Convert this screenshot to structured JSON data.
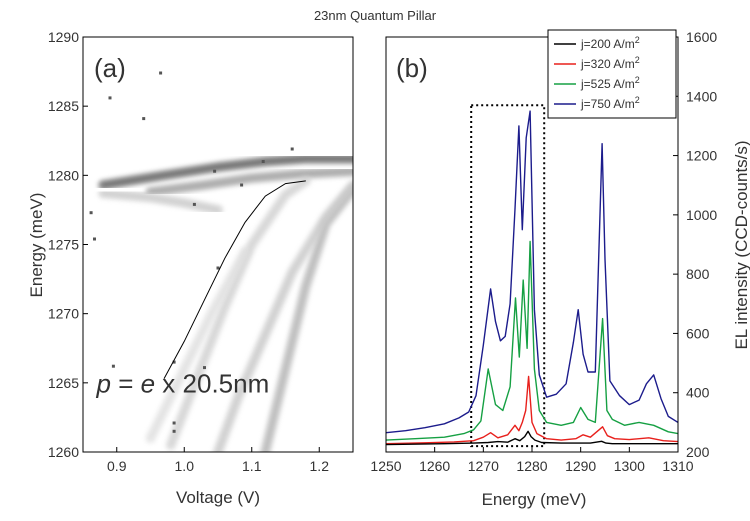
{
  "figure_title": "23nm Quantum Pillar",
  "chart_data": [
    {
      "type": "heatmap",
      "panel_label": "(a)",
      "xlabel": "Voltage (V)",
      "ylabel": "Energy (meV)",
      "xlim": [
        0.85,
        1.25
      ],
      "ylim": [
        1260,
        1290
      ],
      "x_ticks": [
        {
          "value": 0.9,
          "label": "0.9"
        },
        {
          "value": 1.0,
          "label": "1.0"
        },
        {
          "value": 1.1,
          "label": "1.1"
        },
        {
          "value": 1.2,
          "label": "1.2"
        }
      ],
      "y_ticks": [
        {
          "value": 1260,
          "label": "1260"
        },
        {
          "value": 1265,
          "label": "1265"
        },
        {
          "value": 1270,
          "label": "1270"
        },
        {
          "value": 1275,
          "label": "1275"
        },
        {
          "value": 1280,
          "label": "1280"
        },
        {
          "value": 1285,
          "label": "1285"
        },
        {
          "value": 1290,
          "label": "1290"
        }
      ],
      "colormap": "grayscale",
      "dark_bands": [
        {
          "points": [
            [
              0.88,
              1279.3
            ],
            [
              0.97,
              1280.0
            ],
            [
              1.05,
              1280.6
            ],
            [
              1.12,
              1281.0
            ],
            [
              1.18,
              1281.2
            ],
            [
              1.25,
              1281.2
            ]
          ],
          "intensity": 0.75
        },
        {
          "points": [
            [
              0.95,
              1278.8
            ],
            [
              1.03,
              1279.3
            ],
            [
              1.1,
              1279.8
            ],
            [
              1.17,
              1280.1
            ],
            [
              1.25,
              1280.3
            ]
          ],
          "intensity": 0.45
        },
        {
          "points": [
            [
              0.88,
              1278.7
            ],
            [
              0.95,
              1278.4
            ],
            [
              1.0,
              1278.0
            ],
            [
              1.05,
              1277.5
            ]
          ],
          "intensity": 0.25
        },
        {
          "points": [
            [
              1.12,
              1260.0
            ],
            [
              1.15,
              1266.0
            ],
            [
              1.18,
              1272.0
            ],
            [
              1.21,
              1276.5
            ],
            [
              1.25,
              1279.0
            ]
          ],
          "intensity": 0.35
        },
        {
          "points": [
            [
              1.05,
              1260.0
            ],
            [
              1.08,
              1264.0
            ],
            [
              1.12,
              1268.5
            ],
            [
              1.16,
              1273.0
            ],
            [
              1.21,
              1277.0
            ],
            [
              1.25,
              1279.3
            ]
          ],
          "intensity": 0.25
        },
        {
          "points": [
            [
              0.98,
              1260.5
            ],
            [
              1.02,
              1265.5
            ],
            [
              1.06,
              1270.5
            ],
            [
              1.1,
              1275.0
            ],
            [
              1.15,
              1278.6
            ],
            [
              1.18,
              1279.6
            ]
          ],
          "intensity": 0.22
        },
        {
          "points": [
            [
              0.95,
              1261.0
            ],
            [
              1.0,
              1266.0
            ],
            [
              1.04,
              1270.0
            ],
            [
              1.09,
              1274.5
            ]
          ],
          "intensity": 0.15
        }
      ],
      "dots": [
        {
          "x": 0.965,
          "y": 1287.4
        },
        {
          "x": 0.89,
          "y": 1285.6
        },
        {
          "x": 0.94,
          "y": 1284.1
        },
        {
          "x": 1.117,
          "y": 1281.0
        },
        {
          "x": 1.16,
          "y": 1281.9
        },
        {
          "x": 1.045,
          "y": 1280.3
        },
        {
          "x": 1.085,
          "y": 1279.3
        },
        {
          "x": 1.015,
          "y": 1277.9
        },
        {
          "x": 0.862,
          "y": 1277.3
        },
        {
          "x": 0.867,
          "y": 1275.4
        },
        {
          "x": 1.05,
          "y": 1273.3
        },
        {
          "x": 0.985,
          "y": 1266.5
        },
        {
          "x": 1.03,
          "y": 1266.1
        },
        {
          "x": 0.895,
          "y": 1266.2
        },
        {
          "x": 0.985,
          "y": 1262.1
        },
        {
          "x": 0.985,
          "y": 1261.5
        }
      ],
      "fit_curve": [
        [
          0.97,
          1265.3
        ],
        [
          1.0,
          1268.0
        ],
        [
          1.03,
          1271.0
        ],
        [
          1.06,
          1274.0
        ],
        [
          1.09,
          1276.6
        ],
        [
          1.12,
          1278.5
        ],
        [
          1.15,
          1279.4
        ],
        [
          1.18,
          1279.6
        ]
      ],
      "annotation": {
        "prefix": "p",
        "eq": " = ",
        "var": "e",
        "suffix": " x 20.5nm",
        "x": 0.87,
        "y": 1264.3
      }
    },
    {
      "type": "line",
      "panel_label": "(b)",
      "xlabel": "Energy (meV)",
      "ylabel": "EL intensity (CCD-counts/s)",
      "xlim": [
        1250,
        1310
      ],
      "ylim": [
        200,
        1600
      ],
      "x_ticks": [
        1250,
        1260,
        1270,
        1280,
        1290,
        1300,
        1310
      ],
      "y_ticks": [
        200,
        400,
        600,
        800,
        1000,
        1200,
        1400,
        1600
      ],
      "legend_position": "top-right",
      "highlight_box": {
        "x": [
          1267.5,
          1282.5
        ],
        "y": [
          220,
          1370
        ]
      },
      "series": [
        {
          "name": "j=200 A/m",
          "sup": "2",
          "color": "#000000",
          "x": [
            1250,
            1262,
            1268,
            1271,
            1273,
            1275,
            1276.5,
            1277.5,
            1278.5,
            1279.2,
            1279.8,
            1280.6,
            1282,
            1286,
            1292,
            1294.3,
            1295.2,
            1296.5,
            1300,
            1310
          ],
          "y": [
            225,
            228,
            230,
            232,
            235,
            233,
            245,
            238,
            252,
            270,
            252,
            240,
            232,
            230,
            230,
            236,
            230,
            228,
            228,
            228
          ]
        },
        {
          "name": "j=320 A/m",
          "sup": "2",
          "color": "#e8201c",
          "x": [
            1250,
            1258,
            1264,
            1268,
            1270,
            1271.5,
            1273,
            1275,
            1276.5,
            1277.3,
            1278,
            1278.7,
            1279.3,
            1280,
            1281,
            1283,
            1286,
            1289,
            1290.5,
            1292,
            1294.5,
            1295.5,
            1297,
            1300,
            1304,
            1307,
            1310
          ],
          "y": [
            228,
            231,
            234,
            238,
            250,
            265,
            248,
            258,
            290,
            272,
            300,
            340,
            455,
            300,
            262,
            245,
            240,
            245,
            258,
            250,
            285,
            255,
            245,
            242,
            248,
            238,
            235
          ]
        },
        {
          "name": "j=525 A/m",
          "sup": "2",
          "color": "#16a043",
          "x": [
            1250,
            1256,
            1262,
            1266,
            1268,
            1269.5,
            1271,
            1272.5,
            1274,
            1275.5,
            1276.6,
            1277.4,
            1278.2,
            1279,
            1279.6,
            1280.5,
            1281.5,
            1283,
            1286,
            1288.5,
            1290,
            1291.5,
            1293,
            1294.5,
            1295.4,
            1296.5,
            1299,
            1302,
            1305,
            1308,
            1310
          ],
          "y": [
            240,
            245,
            250,
            262,
            275,
            305,
            480,
            360,
            340,
            420,
            720,
            520,
            780,
            550,
            910,
            480,
            340,
            300,
            290,
            300,
            350,
            310,
            300,
            650,
            340,
            310,
            290,
            300,
            290,
            268,
            262
          ]
        },
        {
          "name": "j=750 A/m",
          "sup": "2",
          "color": "#1c1c8c",
          "x": [
            1250,
            1254,
            1258,
            1262,
            1265,
            1267,
            1268.5,
            1270,
            1271.5,
            1272.5,
            1273.5,
            1274.5,
            1275.5,
            1276.5,
            1277.3,
            1278,
            1278.8,
            1279.6,
            1280.5,
            1281.5,
            1283,
            1285,
            1287,
            1288.5,
            1289.5,
            1290.5,
            1291.5,
            1293,
            1294.4,
            1295,
            1296,
            1298,
            1300,
            1302,
            1303.5,
            1305,
            1306.5,
            1308,
            1310
          ],
          "y": [
            265,
            272,
            282,
            295,
            315,
            335,
            390,
            560,
            750,
            640,
            575,
            590,
            700,
            1020,
            1300,
            950,
            1260,
            1350,
            680,
            460,
            385,
            395,
            430,
            570,
            680,
            530,
            470,
            470,
            1240,
            850,
            440,
            390,
            360,
            375,
            430,
            460,
            380,
            320,
            300
          ]
        }
      ]
    }
  ]
}
